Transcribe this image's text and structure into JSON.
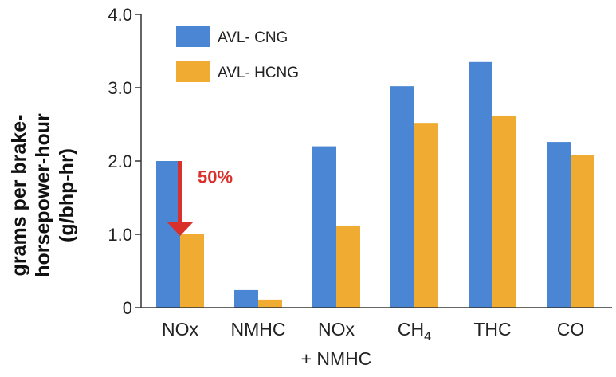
{
  "chart_data": {
    "type": "bar",
    "ylabel_line1": "grams per brake-",
    "ylabel_line2": "horsepower-hour",
    "ylabel_line3": "(g/bhp-hr)",
    "ylim": [
      0,
      4.0
    ],
    "yticks": [
      "0",
      "1.0",
      "2.0",
      "3.0",
      "4.0"
    ],
    "categories": [
      {
        "line1": "NOx",
        "line2": ""
      },
      {
        "line1": "NMHC",
        "line2": ""
      },
      {
        "line1": "NOx",
        "line2": "+ NMHC"
      },
      {
        "line1": "CH",
        "sub": "4",
        "line2": ""
      },
      {
        "line1": "THC",
        "line2": ""
      },
      {
        "line1": "CO",
        "line2": ""
      }
    ],
    "series": [
      {
        "name": "AVL- CNG",
        "color": "#4A86D4",
        "values": [
          2.0,
          0.24,
          2.2,
          3.02,
          3.35,
          2.26
        ]
      },
      {
        "name": "AVL- HCNG",
        "color": "#F0AC32",
        "values": [
          1.0,
          0.11,
          1.12,
          2.52,
          2.62,
          2.08
        ]
      }
    ],
    "legend_position": "top-left",
    "grid": false,
    "annotation": {
      "text": "50%",
      "color": "#D9302C",
      "category_index": 0,
      "from": 2.0,
      "to": 1.0
    }
  }
}
